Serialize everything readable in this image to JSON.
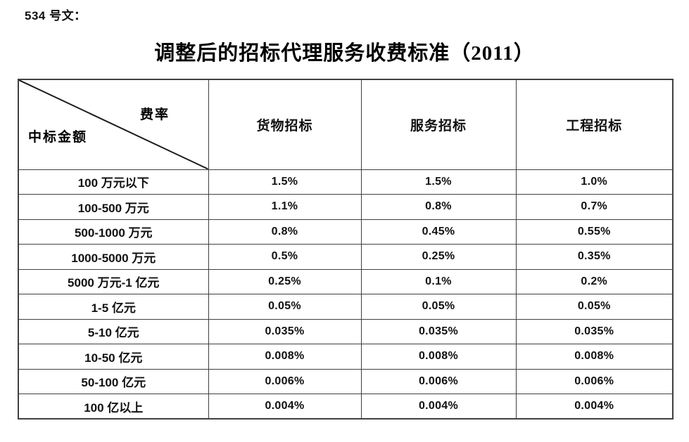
{
  "page": {
    "doc_label": "534 号文：",
    "title": "调整后的招标代理服务收费标准（2011）"
  },
  "table": {
    "corner": {
      "top_right": "费率",
      "bottom_left": "中标金额"
    },
    "columns": [
      "货物招标",
      "服务招标",
      "工程招标"
    ],
    "rows": [
      {
        "label": "100 万元以下",
        "values": [
          "1.5%",
          "1.5%",
          "1.0%"
        ]
      },
      {
        "label": "100-500 万元",
        "values": [
          "1.1%",
          "0.8%",
          "0.7%"
        ]
      },
      {
        "label": "500-1000 万元",
        "values": [
          "0.8%",
          "0.45%",
          "0.55%"
        ]
      },
      {
        "label": "1000-5000 万元",
        "values": [
          "0.5%",
          "0.25%",
          "0.35%"
        ]
      },
      {
        "label": "5000 万元-1 亿元",
        "values": [
          "0.25%",
          "0.1%",
          "0.2%"
        ]
      },
      {
        "label": "1-5 亿元",
        "values": [
          "0.05%",
          "0.05%",
          "0.05%"
        ]
      },
      {
        "label": "5-10 亿元",
        "values": [
          "0.035%",
          "0.035%",
          "0.035%"
        ]
      },
      {
        "label": "10-50 亿元",
        "values": [
          "0.008%",
          "0.008%",
          "0.008%"
        ]
      },
      {
        "label": "50-100 亿元",
        "values": [
          "0.006%",
          "0.006%",
          "0.006%"
        ]
      },
      {
        "label": "100 亿以上",
        "values": [
          "0.004%",
          "0.004%",
          "0.004%"
        ]
      }
    ],
    "colors": {
      "border": "#404040",
      "text": "#111111",
      "background": "#ffffff"
    }
  }
}
